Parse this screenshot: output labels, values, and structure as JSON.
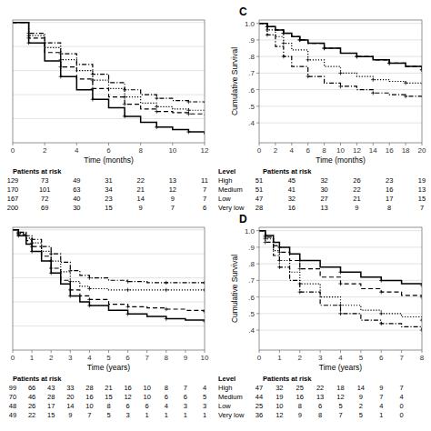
{
  "chart_data": [
    {
      "type": "step",
      "xlabel": "Time (months)",
      "xlim": [
        0,
        12
      ],
      "xticks": [
        0,
        2,
        4,
        6,
        8,
        10,
        12
      ],
      "ylim": [
        0.0,
        1.02
      ],
      "yticks": [
        0.2,
        0.4,
        0.6,
        0.8,
        1.0
      ],
      "tick_labels": "x",
      "grid": true,
      "series": [
        {
          "color": "#000000",
          "line_style": "solid",
          "marker": "plus",
          "x": [
            0,
            1,
            2,
            3,
            4,
            5,
            6,
            7,
            8,
            9,
            10,
            11,
            12
          ],
          "values": [
            1.0,
            0.83,
            0.68,
            0.55,
            0.44,
            0.36,
            0.29,
            0.22,
            0.17,
            0.13,
            0.11,
            0.09,
            0.07
          ]
        },
        {
          "color": "#000000",
          "line_style": "dashed",
          "marker": "plus",
          "x": [
            0,
            1,
            2,
            3,
            4,
            5,
            6,
            7,
            8,
            9,
            10,
            11,
            12
          ],
          "values": [
            1.0,
            0.87,
            0.75,
            0.63,
            0.53,
            0.45,
            0.38,
            0.32,
            0.28,
            0.26,
            0.25,
            0.24,
            0.23
          ]
        },
        {
          "color": "#000000",
          "line_style": "dotted",
          "marker": "plus",
          "x": [
            0,
            1,
            2,
            3,
            4,
            5,
            6,
            7,
            8,
            9,
            10,
            11,
            12
          ],
          "values": [
            1.0,
            0.89,
            0.79,
            0.69,
            0.6,
            0.52,
            0.45,
            0.38,
            0.33,
            0.3,
            0.28,
            0.27,
            0.26
          ]
        },
        {
          "color": "#000000",
          "line_style": "dashdot",
          "marker": "plus",
          "x": [
            0,
            1,
            2,
            3,
            4,
            5,
            6,
            7,
            8,
            9,
            10,
            11,
            12
          ],
          "values": [
            1.0,
            0.91,
            0.83,
            0.74,
            0.65,
            0.57,
            0.5,
            0.44,
            0.4,
            0.37,
            0.35,
            0.34,
            0.33
          ]
        }
      ],
      "risk_table": {
        "header": "Patients at risk",
        "x": [
          0,
          2,
          4,
          6,
          8,
          10,
          12
        ],
        "rows": [
          [
            129,
            73,
            49,
            31,
            22,
            13,
            11
          ],
          [
            170,
            101,
            63,
            34,
            21,
            12,
            7
          ],
          [
            167,
            72,
            40,
            23,
            14,
            9,
            7
          ],
          [
            200,
            69,
            30,
            15,
            9,
            7,
            6
          ]
        ]
      }
    },
    {
      "type": "step",
      "xlabel": "Time (years)",
      "xlim": [
        0,
        10
      ],
      "xticks": [
        0,
        1,
        2,
        3,
        4,
        5,
        6,
        7,
        8,
        9,
        10
      ],
      "ylim": [
        0.0,
        1.02
      ],
      "yticks": [
        0.2,
        0.4,
        0.6,
        0.8,
        1.0
      ],
      "tick_labels": "x",
      "grid": true,
      "series": [
        {
          "color": "#000000",
          "line_style": "solid",
          "marker": "plus",
          "x": [
            0,
            0.3,
            0.7,
            1,
            1.5,
            2,
            2.5,
            3,
            3.5,
            4,
            5,
            6,
            7,
            8,
            9,
            10
          ],
          "values": [
            1.0,
            0.95,
            0.88,
            0.82,
            0.74,
            0.64,
            0.55,
            0.45,
            0.4,
            0.37,
            0.33,
            0.3,
            0.28,
            0.26,
            0.25,
            0.24
          ]
        },
        {
          "color": "#000000",
          "line_style": "dashed",
          "marker": "plus",
          "x": [
            0,
            0.3,
            0.7,
            1,
            1.5,
            2,
            2.5,
            3,
            3.5,
            4,
            5,
            6,
            7,
            8,
            9,
            10
          ],
          "values": [
            1.0,
            0.96,
            0.91,
            0.86,
            0.78,
            0.68,
            0.58,
            0.5,
            0.45,
            0.42,
            0.38,
            0.36,
            0.35,
            0.34,
            0.33,
            0.32
          ]
        },
        {
          "color": "#000000",
          "line_style": "dotted",
          "marker": "plus",
          "x": [
            0,
            0.3,
            0.7,
            1,
            1.5,
            2,
            2.5,
            3,
            3.5,
            4,
            5,
            6,
            7,
            8,
            9,
            10
          ],
          "values": [
            1.0,
            0.97,
            0.93,
            0.89,
            0.82,
            0.74,
            0.65,
            0.57,
            0.53,
            0.51,
            0.5,
            0.5,
            0.5,
            0.5,
            0.5,
            0.5
          ]
        },
        {
          "color": "#000000",
          "line_style": "dashdot",
          "marker": "plus",
          "x": [
            0,
            0.3,
            0.7,
            1,
            1.5,
            2,
            2.5,
            3,
            3.5,
            4,
            5,
            6,
            7,
            8,
            9,
            10
          ],
          "values": [
            1.0,
            0.98,
            0.95,
            0.92,
            0.86,
            0.8,
            0.73,
            0.66,
            0.62,
            0.6,
            0.58,
            0.57,
            0.56,
            0.56,
            0.56,
            0.56
          ]
        }
      ],
      "risk_table": {
        "header": "Patients at risk",
        "x": [
          0,
          1,
          2,
          3,
          4,
          5,
          6,
          7,
          8,
          9,
          10
        ],
        "rows": [
          [
            99,
            66,
            43,
            33,
            28,
            21,
            16,
            10,
            8,
            7,
            4
          ],
          [
            70,
            46,
            28,
            20,
            16,
            15,
            12,
            10,
            6,
            6,
            5
          ],
          [
            48,
            26,
            17,
            14,
            10,
            8,
            6,
            6,
            4,
            3,
            3
          ],
          [
            49,
            22,
            15,
            9,
            7,
            5,
            3,
            1,
            1,
            1,
            1
          ]
        ]
      }
    },
    {
      "type": "step",
      "panel_label": "C",
      "xlabel": "Time (months)",
      "ylabel": "Cumulative Survival",
      "xlim": [
        0,
        20
      ],
      "xticks": [
        0,
        2,
        4,
        6,
        8,
        10,
        12,
        14,
        16,
        18,
        20
      ],
      "ylim": [
        0.28,
        1.02
      ],
      "yticks": [
        {
          "value": 0.4,
          "label": ".4"
        },
        {
          "value": 0.5,
          "label": ".5"
        },
        {
          "value": 0.6,
          "label": ".6"
        },
        {
          "value": 0.7,
          "label": ".7"
        },
        {
          "value": 0.8,
          "label": ".8"
        },
        {
          "value": 0.9,
          "label": ".9"
        },
        {
          "value": 1.0,
          "label": "1.0"
        }
      ],
      "grid": true,
      "series": [
        {
          "color": "#000000",
          "line_style": "solid",
          "marker": "plus",
          "x": [
            0,
            1,
            2,
            3,
            4,
            5,
            6,
            8,
            10,
            12,
            14,
            16,
            18,
            20
          ],
          "values": [
            1.0,
            0.98,
            0.96,
            0.94,
            0.92,
            0.9,
            0.88,
            0.85,
            0.82,
            0.8,
            0.78,
            0.76,
            0.74,
            0.72
          ]
        },
        {
          "color": "#000000",
          "line_style": "dashed",
          "marker": "plus",
          "x": [
            0,
            1,
            2,
            3,
            4,
            5,
            6,
            8,
            10,
            12,
            14,
            16,
            18,
            20
          ],
          "values": [
            1.0,
            0.98,
            0.96,
            0.94,
            0.92,
            0.9,
            0.88,
            0.85,
            0.82,
            0.8,
            0.78,
            0.76,
            0.74,
            0.72
          ]
        },
        {
          "color": "#000000",
          "line_style": "dotted",
          "marker": "plus",
          "x": [
            0,
            1,
            2,
            3,
            4,
            6,
            8,
            10,
            12,
            14,
            16,
            18,
            20
          ],
          "values": [
            1.0,
            0.96,
            0.92,
            0.88,
            0.84,
            0.78,
            0.74,
            0.7,
            0.68,
            0.66,
            0.65,
            0.64,
            0.63
          ]
        },
        {
          "color": "#000000",
          "line_style": "dashdot",
          "marker": "plus",
          "x": [
            0,
            1,
            2,
            3,
            4,
            6,
            8,
            10,
            12,
            14,
            16,
            18,
            20
          ],
          "values": [
            1.0,
            0.93,
            0.86,
            0.8,
            0.74,
            0.68,
            0.64,
            0.62,
            0.6,
            0.58,
            0.57,
            0.56,
            0.55
          ]
        }
      ],
      "risk_table": {
        "header": "Patients at risk",
        "level_header": "Level",
        "levels": [
          "High",
          "Medium",
          "Low",
          "Very low"
        ],
        "x": [
          0,
          4,
          8,
          12,
          16,
          20
        ],
        "rows": [
          [
            51,
            45,
            32,
            26,
            23,
            19
          ],
          [
            51,
            41,
            30,
            22,
            16,
            13
          ],
          [
            47,
            32,
            27,
            21,
            17,
            15
          ],
          [
            28,
            16,
            13,
            9,
            8,
            7
          ]
        ]
      }
    },
    {
      "type": "step",
      "panel_label": "D",
      "xlabel": "Time (years)",
      "ylabel": "Cumulative Survival",
      "xlim": [
        0,
        8
      ],
      "xticks": [
        0,
        1,
        2,
        3,
        4,
        5,
        6,
        7,
        8
      ],
      "ylim": [
        0.28,
        1.02
      ],
      "yticks": [
        {
          "value": 0.4,
          "label": ".4"
        },
        {
          "value": 0.5,
          "label": ".5"
        },
        {
          "value": 0.6,
          "label": ".6"
        },
        {
          "value": 0.7,
          "label": ".7"
        },
        {
          "value": 0.8,
          "label": ".8"
        },
        {
          "value": 0.9,
          "label": ".9"
        },
        {
          "value": 1.0,
          "label": "1.0"
        }
      ],
      "grid": true,
      "series": [
        {
          "color": "#000000",
          "line_style": "solid",
          "marker": "plus",
          "x": [
            0,
            0.3,
            0.7,
            1,
            1.5,
            2,
            3,
            4,
            5,
            6,
            7,
            8
          ],
          "values": [
            1.0,
            0.97,
            0.93,
            0.9,
            0.86,
            0.82,
            0.78,
            0.75,
            0.72,
            0.7,
            0.68,
            0.67
          ]
        },
        {
          "color": "#000000",
          "line_style": "dashed",
          "marker": "plus",
          "x": [
            0,
            0.3,
            0.7,
            1,
            1.5,
            2,
            3,
            4,
            5,
            6,
            7,
            8
          ],
          "values": [
            1.0,
            0.96,
            0.91,
            0.87,
            0.82,
            0.77,
            0.72,
            0.68,
            0.65,
            0.63,
            0.61,
            0.6
          ]
        },
        {
          "color": "#000000",
          "line_style": "dotted",
          "marker": "plus",
          "x": [
            0,
            0.3,
            0.7,
            1,
            1.5,
            2,
            3,
            4,
            5,
            6,
            7,
            8
          ],
          "values": [
            1.0,
            0.95,
            0.88,
            0.82,
            0.75,
            0.68,
            0.6,
            0.55,
            0.52,
            0.5,
            0.48,
            0.46
          ]
        },
        {
          "color": "#000000",
          "line_style": "dashdot",
          "marker": "plus",
          "x": [
            0,
            0.3,
            0.7,
            1,
            1.5,
            2,
            3,
            4,
            5,
            6,
            7,
            8
          ],
          "values": [
            1.0,
            0.93,
            0.85,
            0.78,
            0.7,
            0.63,
            0.55,
            0.5,
            0.46,
            0.44,
            0.42,
            0.4
          ]
        }
      ],
      "risk_table": {
        "header": "Patients at risk",
        "level_header": "Level",
        "levels": [
          "High",
          "Medium",
          "Low",
          "Very low"
        ],
        "x": [
          0,
          1,
          2,
          3,
          4,
          5,
          6,
          7
        ],
        "rows": [
          [
            47,
            32,
            25,
            22,
            18,
            14,
            9,
            7
          ],
          [
            44,
            19,
            16,
            13,
            12,
            9,
            7,
            4
          ],
          [
            25,
            10,
            8,
            6,
            5,
            2,
            4,
            0
          ],
          [
            36,
            12,
            9,
            8,
            7,
            5,
            1,
            0
          ]
        ]
      }
    }
  ]
}
